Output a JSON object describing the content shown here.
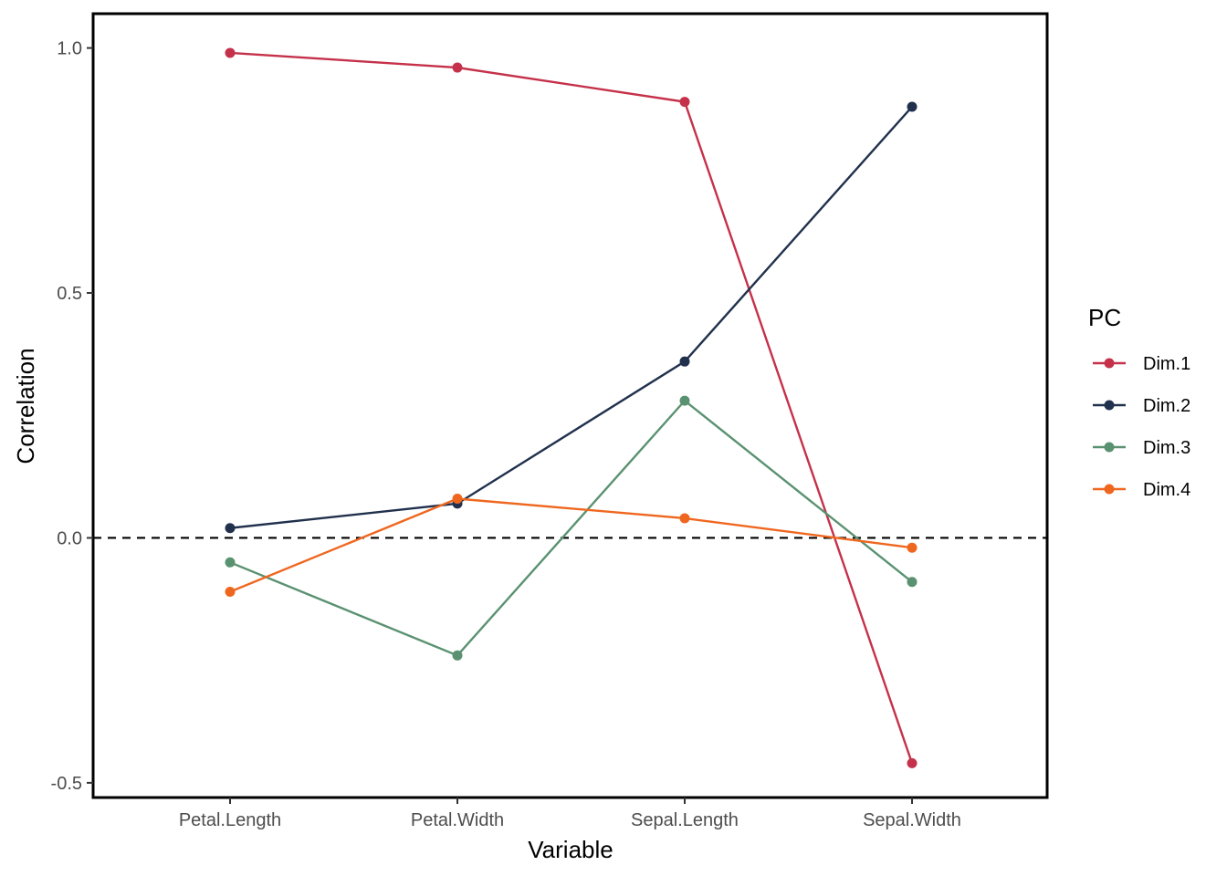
{
  "chart_data": {
    "type": "line",
    "xlabel": "Variable",
    "ylabel": "Correlation",
    "categories": [
      "Petal.Length",
      "Petal.Width",
      "Sepal.Length",
      "Sepal.Width"
    ],
    "ylim": [
      -0.53,
      1.07
    ],
    "yticks": [
      -0.5,
      0.0,
      0.5,
      1.0
    ],
    "ytick_labels": [
      "-0.5",
      "0.0",
      "0.5",
      "1.0"
    ],
    "reference_line": {
      "y": 0,
      "style": "dashed",
      "color": "#000000"
    },
    "grid": false,
    "legend": {
      "title": "PC",
      "position": "right"
    },
    "series": [
      {
        "name": "Dim.1",
        "color": "#C5314A",
        "values": [
          0.99,
          0.96,
          0.89,
          -0.46
        ]
      },
      {
        "name": "Dim.2",
        "color": "#21314D",
        "values": [
          0.02,
          0.07,
          0.36,
          0.88
        ]
      },
      {
        "name": "Dim.3",
        "color": "#5A9271",
        "values": [
          -0.05,
          -0.24,
          0.28,
          -0.09
        ]
      },
      {
        "name": "Dim.4",
        "color": "#EF671F",
        "values": [
          -0.11,
          0.08,
          0.04,
          -0.02
        ]
      }
    ]
  }
}
